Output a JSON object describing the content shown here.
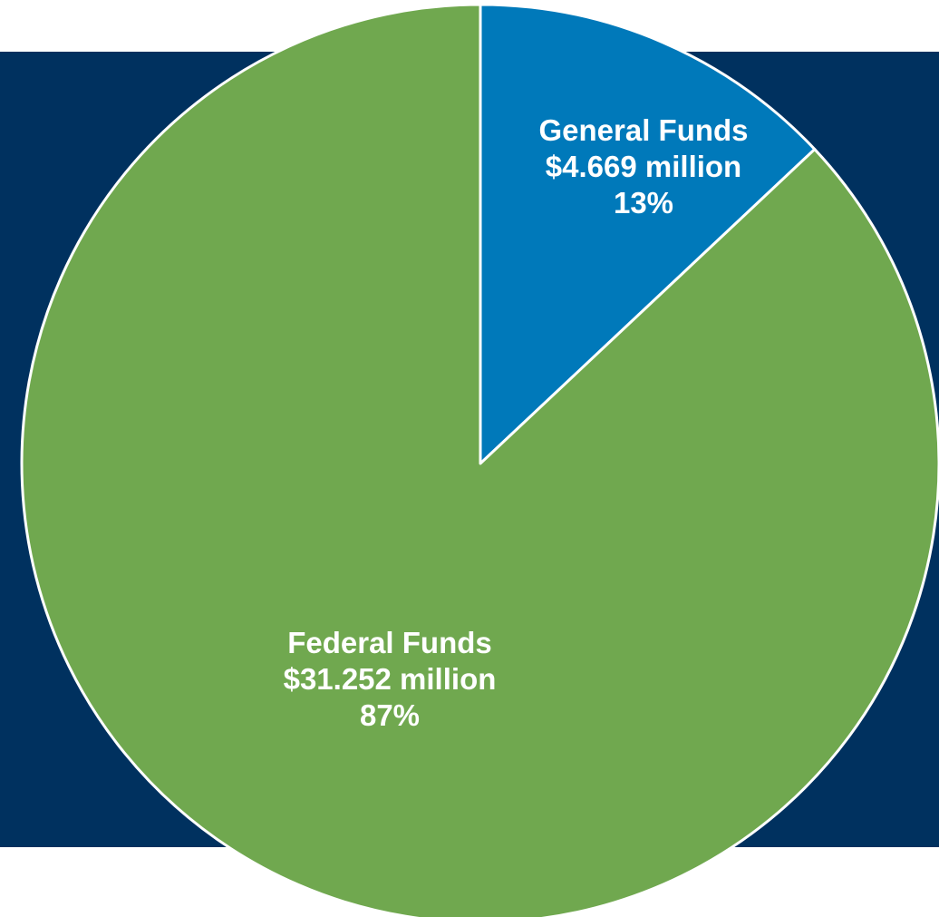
{
  "colors": {
    "backdrop": "#00315F",
    "general_funds": "#0079BA",
    "federal_funds": "#70A84F",
    "slice_border": "#FFFFFF",
    "label_text": "#FFFFFF"
  },
  "chart_data": {
    "type": "pie",
    "title": "",
    "start_angle_deg": 0,
    "direction": "clockwise",
    "slices": [
      {
        "label": "General Funds",
        "value": 4.669,
        "value_text": "$4.669 million",
        "percent": 13,
        "percent_text": "13%",
        "color": "#0079BA"
      },
      {
        "label": "Federal Funds",
        "value": 31.252,
        "value_text": "$31.252 million",
        "percent": 87,
        "percent_text": "87%",
        "color": "#70A84F"
      }
    ]
  }
}
